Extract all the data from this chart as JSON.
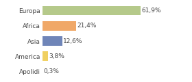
{
  "categories": [
    "Europa",
    "Africa",
    "Asia",
    "America",
    "Apolidi"
  ],
  "values": [
    61.9,
    21.4,
    12.6,
    3.8,
    0.3
  ],
  "labels": [
    "61,9%",
    "21,4%",
    "12,6%",
    "3,8%",
    "0,3%"
  ],
  "bar_colors": [
    "#b5c98a",
    "#f0a868",
    "#6f85b8",
    "#f0d060",
    "#c8c8c8"
  ],
  "background_color": "#ffffff",
  "label_fontsize": 6.5,
  "tick_fontsize": 6.5,
  "xlim": [
    0,
    80
  ],
  "grid_color": "#d8d8d8",
  "text_color": "#444444"
}
